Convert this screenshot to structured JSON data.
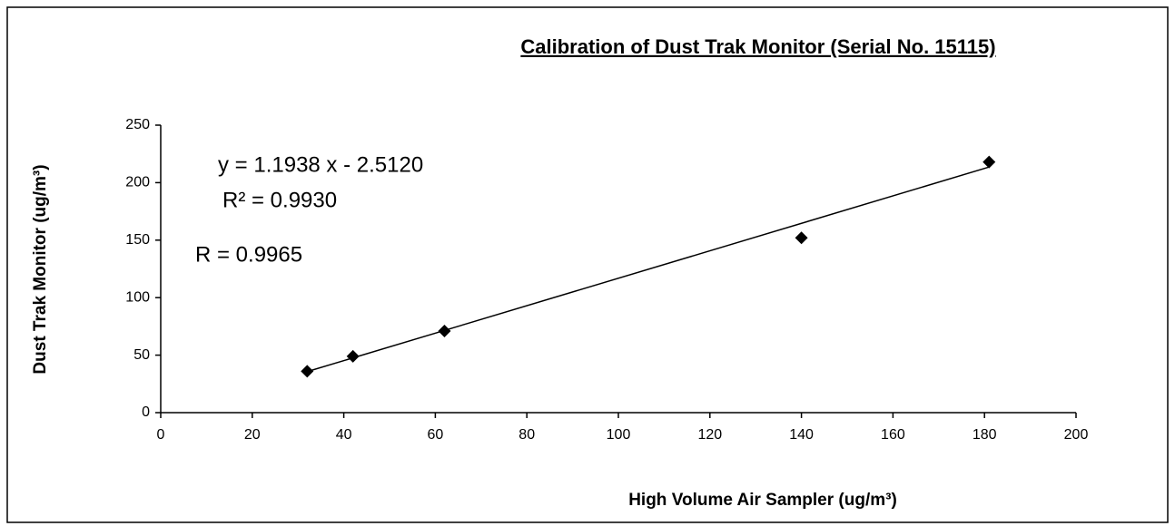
{
  "chart_data": {
    "type": "scatter",
    "title": "Calibration of Dust Trak Monitor (Serial No. 15115)",
    "xlabel": "High Volume Air Sampler (ug/m³)",
    "ylabel": "Dust Trak Monitor (ug/m³)",
    "x": [
      32,
      42,
      62,
      140,
      181
    ],
    "values": [
      36,
      49,
      71,
      152,
      218
    ],
    "color": "#000000",
    "trendline": {
      "slope": 1.1938,
      "intercept": -2.512
    },
    "annotations": [
      "y = 1.1938 x - 2.5120",
      "R² = 0.9930",
      "R = 0.9965"
    ],
    "xlim": [
      0,
      200
    ],
    "xticks": [
      0,
      20,
      40,
      60,
      80,
      100,
      120,
      140,
      160,
      180,
      200
    ],
    "ylim": [
      0,
      250
    ],
    "yticks": [
      0,
      50,
      100,
      150,
      200,
      250
    ],
    "grid": false
  }
}
